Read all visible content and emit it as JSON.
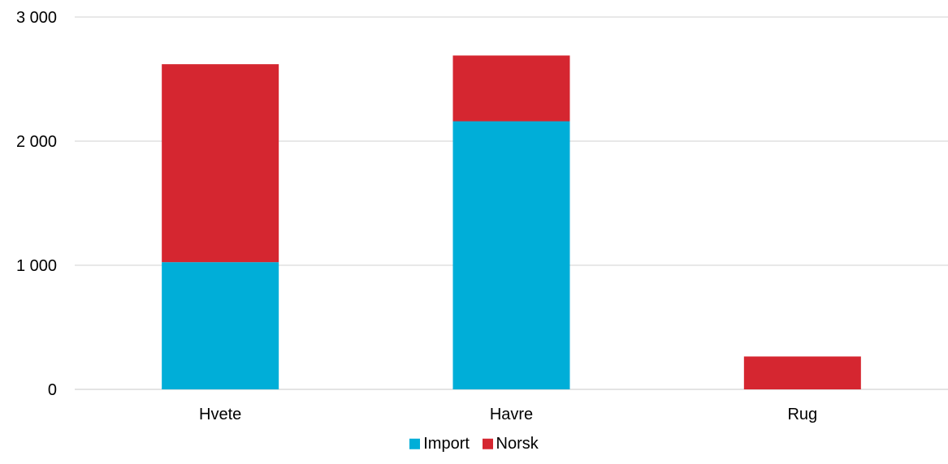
{
  "chart_data": {
    "type": "bar",
    "stacked": true,
    "categories": [
      "Hvete",
      "Havre",
      "Rug"
    ],
    "series": [
      {
        "name": "Import",
        "color": "#00AED8",
        "values": [
          1025,
          2160,
          0
        ]
      },
      {
        "name": "Norsk",
        "color": "#D52630",
        "values": [
          1595,
          530,
          265
        ]
      }
    ],
    "y_ticks": [
      {
        "value": 0,
        "label": "0"
      },
      {
        "value": 1000,
        "label": "1 000"
      },
      {
        "value": 2000,
        "label": "2 000"
      },
      {
        "value": 3000,
        "label": "3 000"
      }
    ],
    "ylim": [
      0,
      3000
    ],
    "grid": true,
    "legend_position": "bottom"
  }
}
